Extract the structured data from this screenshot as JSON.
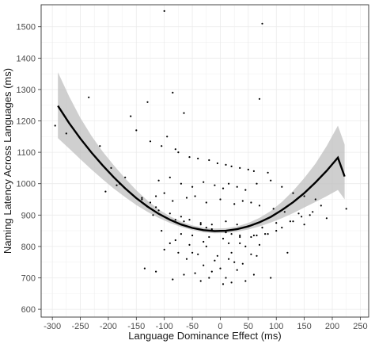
{
  "chart_data": {
    "type": "scatter",
    "title": "",
    "xlabel": "Language Dominance Effect (ms)",
    "ylabel": "Naming Latency Across Languages (ms)",
    "xlim": [
      -320,
      265
    ],
    "ylim": [
      575,
      1570
    ],
    "xticks": [
      -300,
      -250,
      -200,
      -150,
      -100,
      -50,
      0,
      50,
      100,
      150,
      200,
      250
    ],
    "yticks": [
      600,
      700,
      800,
      900,
      1000,
      1100,
      1200,
      1300,
      1400,
      1500
    ],
    "grid": true,
    "legend": "none",
    "colors": {
      "points": "#000000",
      "fit_line": "#000000",
      "confidence_band": "#bfbfbf",
      "grid": "#ebebeb",
      "panel_border": "#333333"
    },
    "series": [
      {
        "kind": "points",
        "x": [
          -100,
          75,
          -85,
          70,
          -235,
          -160,
          -65,
          -130,
          -150,
          -95,
          -125,
          -105,
          -80,
          -75,
          -55,
          -40,
          -20,
          -5,
          10,
          20,
          35,
          50,
          60,
          85,
          -180,
          -110,
          -90,
          -70,
          -50,
          -30,
          -10,
          5,
          15,
          30,
          45,
          65,
          90,
          110,
          130,
          150,
          170,
          -140,
          -115,
          -100,
          -85,
          -60,
          -45,
          -25,
          0,
          25,
          40,
          55,
          70,
          95,
          115,
          140,
          160,
          190,
          -120,
          -95,
          -80,
          -65,
          -35,
          -15,
          10,
          30,
          50,
          75,
          100,
          125,
          150,
          -105,
          -70,
          -50,
          -20,
          5,
          35,
          60,
          80,
          -90,
          -55,
          -25,
          15,
          45,
          70,
          -75,
          -40,
          -5,
          20,
          55,
          -60,
          -10,
          25,
          -30,
          40,
          0,
          -15,
          30,
          -45,
          10,
          60,
          -85,
          -35,
          20,
          90,
          -135,
          -115,
          -65,
          -20,
          5,
          45,
          -100,
          -50,
          15,
          65,
          120,
          -80,
          -30,
          35,
          -295,
          -275,
          -215,
          -195,
          -170,
          -185,
          -205,
          -140,
          -125,
          -115,
          -110,
          -90,
          -70,
          -55,
          -35,
          -25,
          -15,
          0,
          10,
          20,
          35,
          55,
          65,
          85,
          100,
          110,
          130,
          145,
          165,
          180,
          225
        ],
        "y": [
          1550,
          1510,
          1290,
          1270,
          1275,
          1215,
          1225,
          1260,
          1170,
          1150,
          1135,
          1120,
          1110,
          1100,
          1085,
          1080,
          1075,
          1065,
          1060,
          1055,
          1050,
          1045,
          1040,
          1035,
          1000,
          1010,
          1020,
          1000,
          990,
          1005,
          995,
          985,
          1000,
          990,
          980,
          1000,
          1010,
          990,
          970,
          960,
          950,
          950,
          960,
          970,
          945,
          955,
          960,
          940,
          950,
          935,
          945,
          940,
          930,
          920,
          910,
          905,
          900,
          890,
          900,
          890,
          885,
          880,
          875,
          870,
          880,
          870,
          865,
          860,
          875,
          880,
          870,
          850,
          840,
          835,
          830,
          825,
          830,
          835,
          840,
          810,
          805,
          800,
          810,
          800,
          805,
          780,
          775,
          770,
          780,
          775,
          760,
          755,
          750,
          740,
          745,
          730,
          720,
          725,
          715,
          700,
          710,
          695,
          690,
          685,
          700,
          730,
          720,
          710,
          700,
          680,
          690,
          790,
          780,
          760,
          770,
          780,
          820,
          815,
          810,
          1185,
          1160,
          1120,
          1050,
          1020,
          995,
          975,
          955,
          940,
          925,
          915,
          905,
          895,
          885,
          870,
          860,
          855,
          850,
          845,
          840,
          835,
          830,
          835,
          840,
          850,
          860,
          880,
          895,
          910,
          930,
          920
        ]
      },
      {
        "kind": "quadratic_fit",
        "x": [
          -290,
          -270,
          -250,
          -230,
          -210,
          -190,
          -170,
          -150,
          -130,
          -110,
          -90,
          -70,
          -50,
          -30,
          -10,
          10,
          30,
          50,
          70,
          90,
          110,
          130,
          150,
          170,
          190,
          210,
          222
        ],
        "y": [
          1248,
          1193,
          1144,
          1099,
          1058,
          1020,
          985,
          954,
          927,
          904,
          885,
          870,
          859,
          852,
          849,
          850,
          855,
          864,
          877,
          894,
          916,
          941,
          970,
          1004,
          1041,
          1083,
          1023
        ],
        "ci_lower": [
          1145,
          1112,
          1078,
          1045,
          1014,
          984,
          957,
          932,
          910,
          891,
          875,
          862,
          852,
          845,
          842,
          843,
          847,
          854,
          864,
          876,
          890,
          906,
          924,
          942,
          960,
          980,
          950
        ],
        "ci_upper": [
          1355,
          1278,
          1210,
          1152,
          1102,
          1058,
          1017,
          979,
          946,
          918,
          896,
          879,
          867,
          860,
          857,
          858,
          864,
          875,
          891,
          913,
          942,
          977,
          1018,
          1064,
          1120,
          1185,
          1125
        ]
      }
    ]
  }
}
